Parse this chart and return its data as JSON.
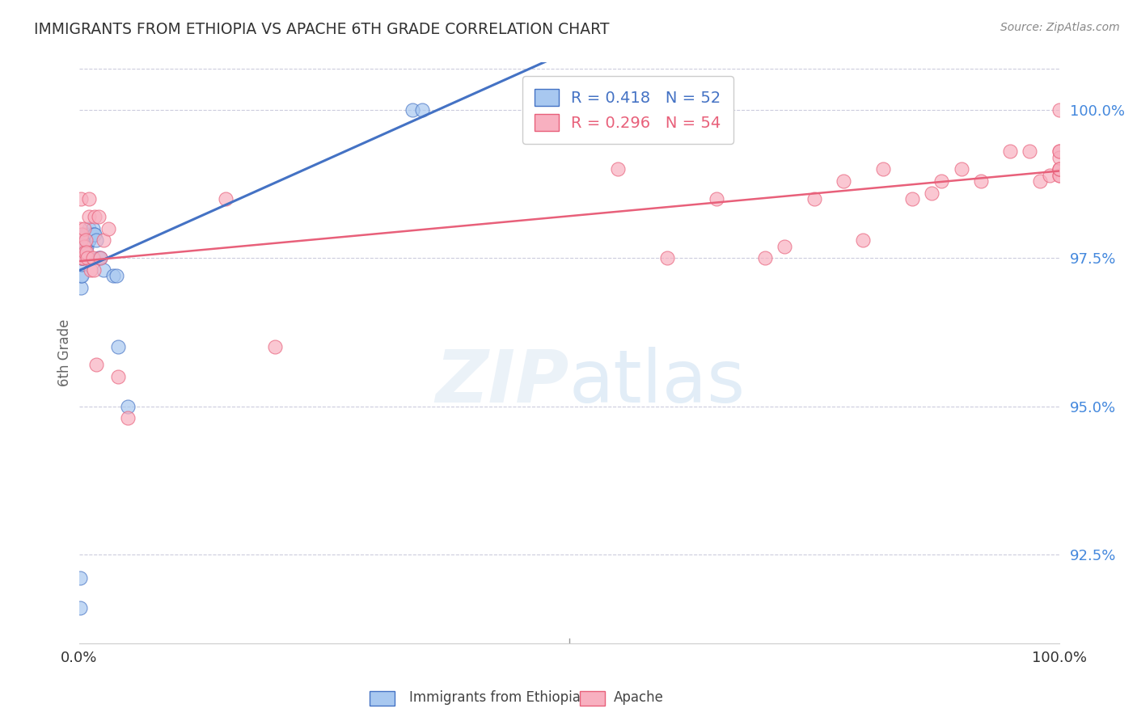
{
  "title": "IMMIGRANTS FROM ETHIOPIA VS APACHE 6TH GRADE CORRELATION CHART",
  "source": "Source: ZipAtlas.com",
  "ylabel": "6th Grade",
  "xlabel_legend1": "Immigrants from Ethiopia",
  "xlabel_legend2": "Apache",
  "legend1_R": 0.418,
  "legend1_N": 52,
  "legend2_R": 0.296,
  "legend2_N": 54,
  "xmin": 0.0,
  "xmax": 1.0,
  "ymin": 0.91,
  "ymax": 1.008,
  "yticks": [
    0.925,
    0.95,
    0.975,
    1.0
  ],
  "ytick_labels": [
    "92.5%",
    "95.0%",
    "97.5%",
    "100.0%"
  ],
  "xtick_labels": [
    "0.0%",
    "",
    "",
    "",
    "100.0%"
  ],
  "blue_color": "#a8c8f0",
  "pink_color": "#f8b0c0",
  "blue_line_color": "#4472c4",
  "pink_line_color": "#e8607a",
  "background_color": "#ffffff",
  "grid_color": "#ccccdd",
  "title_color": "#333333",
  "blue_x": [
    0.001,
    0.001,
    0.002,
    0.002,
    0.002,
    0.003,
    0.003,
    0.003,
    0.003,
    0.003,
    0.004,
    0.004,
    0.004,
    0.004,
    0.004,
    0.005,
    0.005,
    0.005,
    0.005,
    0.005,
    0.006,
    0.006,
    0.006,
    0.006,
    0.007,
    0.007,
    0.007,
    0.008,
    0.008,
    0.008,
    0.009,
    0.009,
    0.01,
    0.01,
    0.01,
    0.01,
    0.011,
    0.012,
    0.013,
    0.014,
    0.015,
    0.016,
    0.018,
    0.02,
    0.022,
    0.025,
    0.035,
    0.038,
    0.04,
    0.05,
    0.34,
    0.35
  ],
  "blue_y": [
    0.916,
    0.921,
    0.97,
    0.972,
    0.975,
    0.972,
    0.974,
    0.975,
    0.976,
    0.977,
    0.975,
    0.976,
    0.977,
    0.978,
    0.978,
    0.976,
    0.977,
    0.978,
    0.978,
    0.979,
    0.976,
    0.977,
    0.978,
    0.979,
    0.977,
    0.978,
    0.979,
    0.977,
    0.978,
    0.979,
    0.978,
    0.979,
    0.978,
    0.978,
    0.979,
    0.98,
    0.979,
    0.979,
    0.979,
    0.98,
    0.979,
    0.979,
    0.978,
    0.975,
    0.975,
    0.973,
    0.972,
    0.972,
    0.96,
    0.95,
    1.0,
    1.0
  ],
  "pink_x": [
    0.001,
    0.002,
    0.002,
    0.003,
    0.003,
    0.004,
    0.005,
    0.005,
    0.006,
    0.007,
    0.008,
    0.009,
    0.01,
    0.01,
    0.012,
    0.014,
    0.015,
    0.016,
    0.018,
    0.02,
    0.022,
    0.025,
    0.03,
    0.04,
    0.05,
    0.15,
    0.2,
    0.55,
    0.6,
    0.65,
    0.7,
    0.72,
    0.75,
    0.78,
    0.8,
    0.82,
    0.85,
    0.87,
    0.88,
    0.9,
    0.92,
    0.95,
    0.97,
    0.98,
    0.99,
    1.0,
    1.0,
    1.0,
    1.0,
    1.0,
    1.0,
    1.0,
    1.0,
    1.0
  ],
  "pink_y": [
    0.98,
    0.978,
    0.985,
    0.979,
    0.975,
    0.975,
    0.977,
    0.98,
    0.976,
    0.978,
    0.976,
    0.975,
    0.982,
    0.985,
    0.973,
    0.975,
    0.973,
    0.982,
    0.957,
    0.982,
    0.975,
    0.978,
    0.98,
    0.955,
    0.948,
    0.985,
    0.96,
    0.99,
    0.975,
    0.985,
    0.975,
    0.977,
    0.985,
    0.988,
    0.978,
    0.99,
    0.985,
    0.986,
    0.988,
    0.99,
    0.988,
    0.993,
    0.993,
    0.988,
    0.989,
    0.99,
    0.989,
    0.993,
    0.989,
    0.99,
    0.992,
    0.993,
    0.99,
    1.0
  ]
}
